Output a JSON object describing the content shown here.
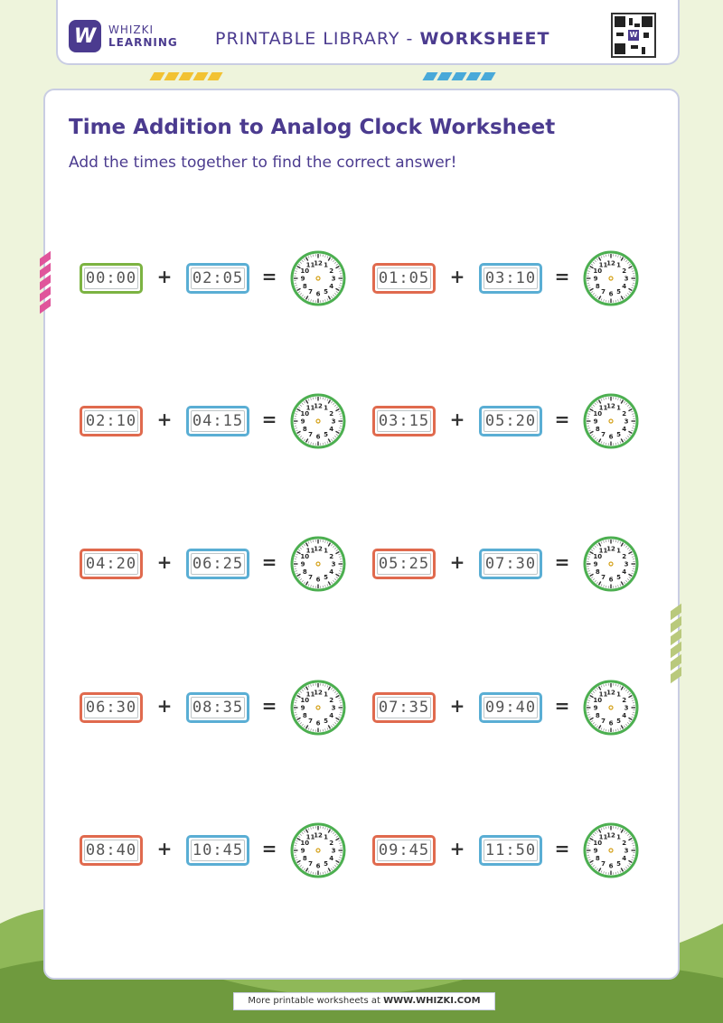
{
  "header": {
    "brand_line1": "WHIZKI",
    "brand_line2": "LEARNING",
    "logo_letter": "W",
    "title_prefix": "PRINTABLE LIBRARY - ",
    "title_bold": "WORKSHEET",
    "qr_icon": "qr-code-icon"
  },
  "worksheet": {
    "title": "Time Addition to Analog Clock Worksheet",
    "instruction": "Add the times together to find the correct answer!"
  },
  "operators": {
    "plus": "+",
    "equals": "="
  },
  "clock_numbers": [
    "12",
    "1",
    "2",
    "3",
    "4",
    "5",
    "6",
    "7",
    "8",
    "9",
    "10",
    "11"
  ],
  "colors": {
    "brand": "#4b3b8f",
    "green_border": "#7cb342",
    "red_border": "#e06a4e",
    "blue_border": "#5aaed4",
    "clock_green": "#4caf50"
  },
  "problems": [
    {
      "a": "00:00",
      "a_color": "green",
      "b": "02:05"
    },
    {
      "a": "01:05",
      "a_color": "red",
      "b": "03:10"
    },
    {
      "a": "02:10",
      "a_color": "red",
      "b": "04:15"
    },
    {
      "a": "03:15",
      "a_color": "red",
      "b": "05:20"
    },
    {
      "a": "04:20",
      "a_color": "red",
      "b": "06:25"
    },
    {
      "a": "05:25",
      "a_color": "red",
      "b": "07:30"
    },
    {
      "a": "06:30",
      "a_color": "red",
      "b": "08:35"
    },
    {
      "a": "07:35",
      "a_color": "red",
      "b": "09:40"
    },
    {
      "a": "08:40",
      "a_color": "red",
      "b": "10:45"
    },
    {
      "a": "09:45",
      "a_color": "red",
      "b": "11:50"
    }
  ],
  "footer": {
    "text": "More printable worksheets at ",
    "link": "WWW.WHIZKI.COM"
  }
}
